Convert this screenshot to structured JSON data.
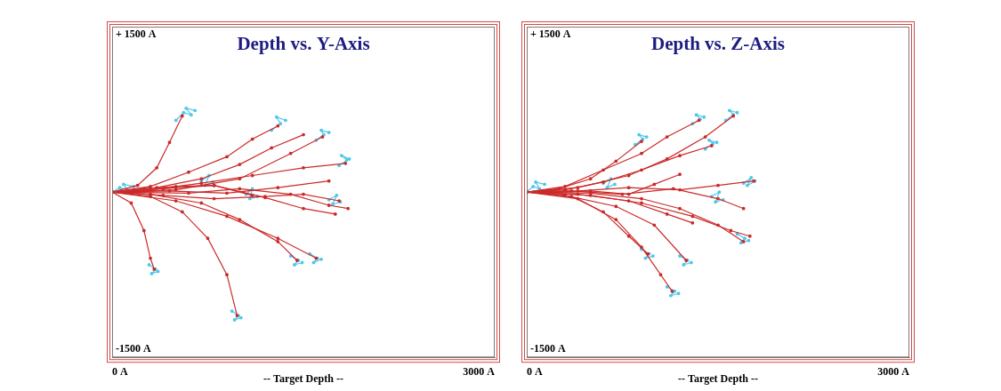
{
  "chart_data": [
    {
      "type": "line",
      "title": "Depth vs. Y-Axis",
      "xlabel": "-- Target Depth --",
      "xlim": [
        0,
        3000
      ],
      "ylim": [
        -1500,
        1500
      ],
      "xticks": [
        {
          "value": 0,
          "label": "0 A"
        },
        {
          "value": 3000,
          "label": "3000 A"
        }
      ],
      "yticks": [
        {
          "value": -1500,
          "label": "-1500 A"
        },
        {
          "value": 1500,
          "label": "+ 1500 A"
        }
      ],
      "grid": false,
      "series": [
        {
          "color": "#cc2a2a",
          "x": [
            0,
            300,
            700,
            1100,
            1500,
            1830
          ],
          "values": [
            0,
            20,
            80,
            150,
            220,
            260
          ]
        },
        {
          "color": "#cc2a2a",
          "x": [
            0,
            400,
            800,
            1200,
            1500,
            1780
          ],
          "values": [
            0,
            -30,
            -60,
            -40,
            -20,
            -80
          ]
        },
        {
          "color": "#cc2a2a",
          "x": [
            0,
            200,
            350,
            450,
            550
          ],
          "values": [
            0,
            60,
            220,
            450,
            690
          ]
        },
        {
          "color": "#cc2a2a",
          "x": [
            0,
            300,
            600,
            900,
            1100,
            1300
          ],
          "values": [
            0,
            50,
            180,
            320,
            480,
            600
          ]
        },
        {
          "color": "#cc2a2a",
          "x": [
            0,
            350,
            700,
            1000,
            1250,
            1500
          ],
          "values": [
            0,
            40,
            120,
            250,
            400,
            520
          ]
        },
        {
          "color": "#cc2a2a",
          "x": [
            0,
            300,
            550,
            750,
            900,
            980
          ],
          "values": [
            0,
            -40,
            -180,
            -420,
            -750,
            -1120
          ]
        },
        {
          "color": "#cc2a2a",
          "x": [
            0,
            150,
            250,
            300,
            330
          ],
          "values": [
            0,
            -100,
            -350,
            -600,
            -700
          ]
        },
        {
          "color": "#cc2a2a",
          "x": [
            0,
            500,
            900,
            1300,
            1600
          ],
          "values": [
            0,
            -80,
            -220,
            -420,
            -600
          ]
        },
        {
          "color": "#cc2a2a",
          "x": [
            0,
            400,
            800,
            1200,
            1500,
            1750
          ],
          "values": [
            0,
            30,
            60,
            -50,
            -150,
            -200
          ]
        },
        {
          "color": "#cc2a2a",
          "x": [
            0,
            500,
            1000,
            1400,
            1650
          ],
          "values": [
            0,
            20,
            120,
            350,
            500
          ]
        },
        {
          "color": "#cc2a2a",
          "x": [
            0,
            300,
            700,
            1000,
            1300,
            1450
          ],
          "values": [
            0,
            -20,
            -100,
            -250,
            -450,
            -620
          ]
        },
        {
          "color": "#cc2a2a",
          "x": [
            0,
            450,
            900,
            1300,
            1700
          ],
          "values": [
            0,
            10,
            -10,
            40,
            100
          ]
        },
        {
          "color": "#cc2a2a",
          "x": [
            0,
            250,
            500,
            800,
            1100
          ],
          "values": [
            0,
            30,
            50,
            60,
            -30
          ]
        },
        {
          "color": "#cc2a2a",
          "x": [
            0,
            600,
            1000,
            1400,
            1700,
            1850
          ],
          "values": [
            0,
            -10,
            30,
            -20,
            -120,
            -150
          ]
        },
        {
          "color": "#4cc8ea",
          "x": [
            0,
            60,
            120,
            90,
            170
          ],
          "values": [
            0,
            40,
            20,
            70,
            50
          ]
        },
        {
          "color": "#4cc8ea",
          "x": [
            500,
            560,
            620,
            580,
            650
          ],
          "values": [
            650,
            720,
            700,
            760,
            740
          ]
        },
        {
          "color": "#4cc8ea",
          "x": [
            1250,
            1320,
            1290,
            1360
          ],
          "values": [
            560,
            620,
            680,
            650
          ]
        },
        {
          "color": "#4cc8ea",
          "x": [
            1780,
            1840,
            1800,
            1860
          ],
          "values": [
            240,
            290,
            330,
            300
          ]
        },
        {
          "color": "#4cc8ea",
          "x": [
            940,
            990,
            960,
            1010
          ],
          "values": [
            -1080,
            -1120,
            -1160,
            -1140
          ]
        },
        {
          "color": "#4cc8ea",
          "x": [
            290,
            340,
            310,
            360
          ],
          "values": [
            -660,
            -700,
            -740,
            -720
          ]
        },
        {
          "color": "#4cc8ea",
          "x": [
            1400,
            1460,
            1430,
            1490
          ],
          "values": [
            -580,
            -620,
            -660,
            -640
          ]
        },
        {
          "color": "#4cc8ea",
          "x": [
            1550,
            1610,
            1580,
            1640
          ],
          "values": [
            -560,
            -600,
            -640,
            -610
          ]
        },
        {
          "color": "#4cc8ea",
          "x": [
            1600,
            1660,
            1640,
            1700
          ],
          "values": [
            470,
            520,
            560,
            540
          ]
        },
        {
          "color": "#4cc8ea",
          "x": [
            1050,
            1100,
            1080,
            1140
          ],
          "values": [
            -20,
            30,
            -60,
            -40
          ]
        },
        {
          "color": "#4cc8ea",
          "x": [
            1700,
            1760,
            1730,
            1790
          ],
          "values": [
            -70,
            -30,
            -110,
            -90
          ]
        },
        {
          "color": "#4cc8ea",
          "x": [
            700,
            760,
            730,
            790
          ],
          "values": [
            100,
            150,
            60,
            90
          ]
        }
      ]
    },
    {
      "type": "line",
      "title": "Depth vs. Z-Axis",
      "xlabel": "-- Target Depth --",
      "xlim": [
        0,
        3000
      ],
      "ylim": [
        -1500,
        1500
      ],
      "xticks": [
        {
          "value": 0,
          "label": "0 A"
        },
        {
          "value": 3000,
          "label": "3000 A"
        }
      ],
      "yticks": [
        {
          "value": -1500,
          "label": "-1500 A"
        },
        {
          "value": 1500,
          "label": "+ 1500 A"
        }
      ],
      "grid": false,
      "series": [
        {
          "color": "#cc2a2a",
          "x": [
            0,
            400,
            800,
            1100,
            1400,
            1620
          ],
          "values": [
            0,
            40,
            150,
            300,
            500,
            690
          ]
        },
        {
          "color": "#cc2a2a",
          "x": [
            0,
            300,
            600,
            900,
            1100,
            1350
          ],
          "values": [
            0,
            50,
            200,
            350,
            500,
            650
          ]
        },
        {
          "color": "#cc2a2a",
          "x": [
            0,
            400,
            800,
            1200,
            1500,
            1780
          ],
          "values": [
            0,
            10,
            40,
            20,
            60,
            100
          ]
        },
        {
          "color": "#cc2a2a",
          "x": [
            0,
            500,
            900,
            1300,
            1600,
            1750
          ],
          "values": [
            0,
            -30,
            -100,
            -220,
            -350,
            -400
          ]
        },
        {
          "color": "#cc2a2a",
          "x": [
            0,
            400,
            700,
            900,
            1050,
            1140
          ],
          "values": [
            0,
            -60,
            -250,
            -500,
            -750,
            -900
          ]
        },
        {
          "color": "#cc2a2a",
          "x": [
            0,
            350,
            600,
            800,
            950
          ],
          "values": [
            0,
            -40,
            -180,
            -400,
            -560
          ]
        },
        {
          "color": "#cc2a2a",
          "x": [
            0,
            300,
            600,
            900,
            1200,
            1450
          ],
          "values": [
            0,
            20,
            90,
            200,
            330,
            420
          ]
        },
        {
          "color": "#cc2a2a",
          "x": [
            0,
            500,
            900,
            1200,
            1500,
            1700
          ],
          "values": [
            0,
            -10,
            -60,
            -150,
            -300,
            -450
          ]
        },
        {
          "color": "#cc2a2a",
          "x": [
            0,
            250,
            500,
            700,
            900
          ],
          "values": [
            0,
            30,
            120,
            280,
            460
          ]
        },
        {
          "color": "#cc2a2a",
          "x": [
            0,
            400,
            800,
            1100,
            1300
          ],
          "values": [
            0,
            -20,
            -80,
            -200,
            -280
          ]
        },
        {
          "color": "#cc2a2a",
          "x": [
            0,
            350,
            750,
            1150,
            1500,
            1700
          ],
          "values": [
            0,
            10,
            -20,
            30,
            -60,
            -150
          ]
        },
        {
          "color": "#cc2a2a",
          "x": [
            0,
            300,
            700,
            1000,
            1250
          ],
          "values": [
            0,
            -30,
            -130,
            -300,
            -620
          ]
        },
        {
          "color": "#cc2a2a",
          "x": [
            0,
            200,
            500,
            800,
            1000,
            1200
          ],
          "values": [
            0,
            -5,
            10,
            -20,
            70,
            160
          ]
        },
        {
          "color": "#4cc8ea",
          "x": [
            0,
            50,
            100,
            70,
            140
          ],
          "values": [
            0,
            50,
            30,
            90,
            70
          ]
        },
        {
          "color": "#4cc8ea",
          "x": [
            1560,
            1620,
            1590,
            1650
          ],
          "values": [
            650,
            700,
            740,
            720
          ]
        },
        {
          "color": "#4cc8ea",
          "x": [
            1300,
            1360,
            1330,
            1390
          ],
          "values": [
            620,
            660,
            700,
            680
          ]
        },
        {
          "color": "#4cc8ea",
          "x": [
            850,
            910,
            880,
            940
          ],
          "values": [
            430,
            480,
            520,
            500
          ]
        },
        {
          "color": "#4cc8ea",
          "x": [
            1100,
            1160,
            1130,
            1190
          ],
          "values": [
            -860,
            -900,
            -940,
            -920
          ]
        },
        {
          "color": "#4cc8ea",
          "x": [
            900,
            960,
            930,
            990
          ],
          "values": [
            -520,
            -560,
            -600,
            -580
          ]
        },
        {
          "color": "#4cc8ea",
          "x": [
            1200,
            1260,
            1230,
            1290
          ],
          "values": [
            -580,
            -620,
            -660,
            -640
          ]
        },
        {
          "color": "#4cc8ea",
          "x": [
            1700,
            1760,
            1730,
            1790
          ],
          "values": [
            80,
            130,
            60,
            100
          ]
        },
        {
          "color": "#4cc8ea",
          "x": [
            1650,
            1710,
            1680,
            1740
          ],
          "values": [
            -380,
            -420,
            -460,
            -440
          ]
        },
        {
          "color": "#4cc8ea",
          "x": [
            1400,
            1460,
            1430,
            1490
          ],
          "values": [
            390,
            440,
            470,
            450
          ]
        },
        {
          "color": "#4cc8ea",
          "x": [
            1450,
            1510,
            1480,
            1540
          ],
          "values": [
            -40,
            0,
            -90,
            -70
          ]
        },
        {
          "color": "#4cc8ea",
          "x": [
            600,
            660,
            630,
            690
          ],
          "values": [
            80,
            120,
            40,
            70
          ]
        }
      ]
    }
  ]
}
